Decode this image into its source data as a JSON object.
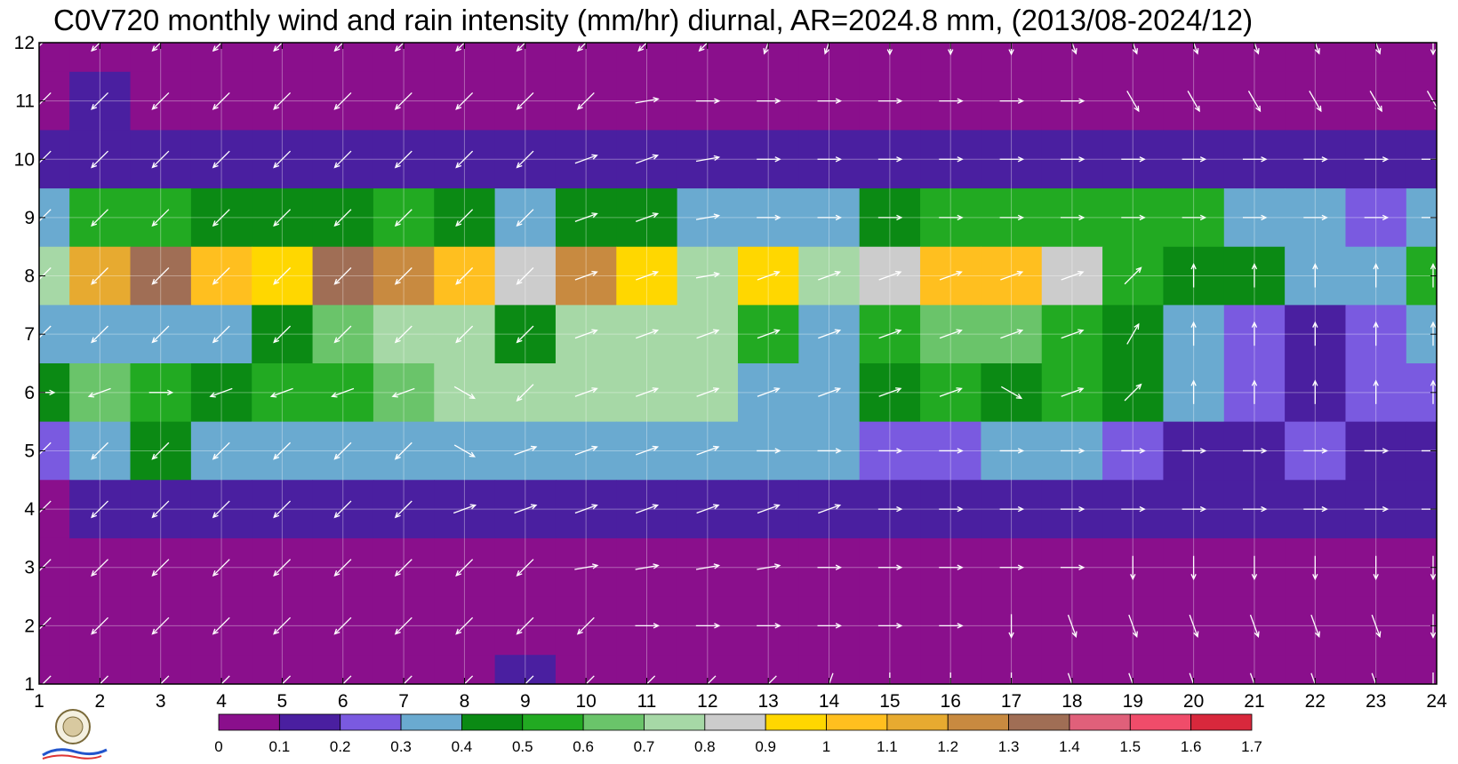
{
  "chart_data": {
    "type": "heatmap",
    "title": "C0V720 monthly wind and rain intensity (mm/hr) diurnal, AR=2024.8 mm, (2013/08-2024/12)",
    "x_ticks": [
      1,
      2,
      3,
      4,
      5,
      6,
      7,
      8,
      9,
      10,
      11,
      12,
      13,
      14,
      15,
      16,
      17,
      18,
      19,
      20,
      21,
      22,
      23,
      24
    ],
    "y_ticks": [
      1,
      2,
      3,
      4,
      5,
      6,
      7,
      8,
      9,
      10,
      11,
      12
    ],
    "xlim": [
      1,
      24
    ],
    "ylim": [
      1,
      12
    ],
    "grid": true,
    "colorbar": {
      "levels": [
        0,
        0.1,
        0.2,
        0.3,
        0.4,
        0.5,
        0.6,
        0.7,
        0.8,
        0.9,
        1,
        1.1,
        1.2,
        1.3,
        1.4,
        1.5,
        1.6,
        1.7
      ],
      "colors": [
        "#8a0f8c",
        "#4a1fa0",
        "#7a5ae0",
        "#6aaad0",
        "#0b8a14",
        "#22aa22",
        "#6ac46a",
        "#a6d8a6",
        "#cccccc",
        "#ffd700",
        "#ffbf1f",
        "#e7aa30",
        "#c88a40",
        "#a06e55",
        "#e0607a",
        "#f04c6a",
        "#d8283c"
      ]
    },
    "intensity_rows": [
      {
        "month": 12,
        "values": [
          0.05,
          0.05,
          0.05,
          0.05,
          0.05,
          0.05,
          0.05,
          0.05,
          0.05,
          0.05,
          0.05,
          0.05,
          0.05,
          0.05,
          0.05,
          0.05,
          0.05,
          0.05,
          0.05,
          0.05,
          0.05,
          0.05,
          0.05,
          0.05
        ]
      },
      {
        "month": 11,
        "values": [
          0.05,
          0.15,
          0.08,
          0.05,
          0.05,
          0.05,
          0.05,
          0.05,
          0.05,
          0.05,
          0.05,
          0.05,
          0.05,
          0.05,
          0.05,
          0.05,
          0.05,
          0.05,
          0.05,
          0.05,
          0.05,
          0.05,
          0.05,
          0.05
        ]
      },
      {
        "month": 10,
        "values": [
          0.18,
          0.15,
          0.15,
          0.15,
          0.15,
          0.15,
          0.15,
          0.15,
          0.12,
          0.12,
          0.12,
          0.15,
          0.15,
          0.15,
          0.15,
          0.15,
          0.15,
          0.15,
          0.12,
          0.15,
          0.15,
          0.15,
          0.15,
          0.15
        ]
      },
      {
        "month": 9,
        "values": [
          0.35,
          0.55,
          0.5,
          0.45,
          0.45,
          0.45,
          0.5,
          0.45,
          0.35,
          0.45,
          0.4,
          0.38,
          0.35,
          0.38,
          0.45,
          0.5,
          0.5,
          0.5,
          0.5,
          0.55,
          0.35,
          0.35,
          0.2,
          0.3
        ]
      },
      {
        "month": 8,
        "values": [
          0.7,
          1.1,
          1.3,
          1.0,
          0.9,
          1.3,
          1.2,
          1.0,
          0.8,
          1.2,
          0.9,
          0.7,
          0.9,
          0.7,
          0.8,
          1.0,
          1.0,
          0.8,
          0.5,
          0.4,
          0.4,
          0.35,
          0.35,
          0.5
        ]
      },
      {
        "month": 7,
        "values": [
          0.35,
          0.3,
          0.3,
          0.35,
          0.45,
          0.6,
          0.7,
          0.7,
          0.4,
          0.7,
          0.75,
          0.7,
          0.5,
          0.35,
          0.5,
          0.6,
          0.65,
          0.55,
          0.45,
          0.35,
          0.25,
          0.15,
          0.25,
          0.3
        ]
      },
      {
        "month": 6,
        "values": [
          0.45,
          0.6,
          0.5,
          0.4,
          0.55,
          0.55,
          0.6,
          0.7,
          0.7,
          0.7,
          0.7,
          0.75,
          0.35,
          0.35,
          0.45,
          0.5,
          0.45,
          0.5,
          0.45,
          0.3,
          0.25,
          0.15,
          0.25,
          0.25
        ]
      },
      {
        "month": 5,
        "values": [
          0.25,
          0.3,
          0.4,
          0.3,
          0.35,
          0.3,
          0.35,
          0.35,
          0.35,
          0.35,
          0.35,
          0.35,
          0.3,
          0.3,
          0.25,
          0.25,
          0.35,
          0.3,
          0.2,
          0.1,
          0.15,
          0.2,
          0.15,
          0.15
        ]
      },
      {
        "month": 4,
        "values": [
          0.05,
          0.15,
          0.15,
          0.1,
          0.15,
          0.15,
          0.1,
          0.15,
          0.15,
          0.15,
          0.15,
          0.15,
          0.15,
          0.15,
          0.15,
          0.15,
          0.15,
          0.15,
          0.1,
          0.15,
          0.15,
          0.12,
          0.12,
          0.15
        ]
      },
      {
        "month": 3,
        "values": [
          0.05,
          0.05,
          0.05,
          0.05,
          0.05,
          0.05,
          0.05,
          0.05,
          0.05,
          0.05,
          0.05,
          0.05,
          0.05,
          0.05,
          0.05,
          0.05,
          0.05,
          0.05,
          0.05,
          0.05,
          0.05,
          0.05,
          0.05,
          0.05
        ]
      },
      {
        "month": 2,
        "values": [
          0.05,
          0.05,
          0.05,
          0.05,
          0.05,
          0.05,
          0.05,
          0.05,
          0.05,
          0.05,
          0.05,
          0.05,
          0.05,
          0.05,
          0.05,
          0.05,
          0.05,
          0.05,
          0.05,
          0.05,
          0.05,
          0.05,
          0.05,
          0.05
        ]
      },
      {
        "month": 1,
        "values": [
          0.05,
          0.05,
          0.05,
          0.05,
          0.05,
          0.05,
          0.05,
          0.05,
          0.12,
          0.05,
          0.05,
          0.05,
          0.05,
          0.05,
          0.05,
          0.05,
          0.05,
          0.05,
          0.05,
          0.05,
          0.05,
          0.05,
          0.05,
          0.05
        ]
      }
    ],
    "wind_rows": [
      {
        "month": 12,
        "angles": [
          225,
          225,
          225,
          225,
          225,
          225,
          225,
          225,
          225,
          225,
          225,
          225,
          250,
          250,
          270,
          270,
          270,
          290,
          290,
          290,
          290,
          290,
          290,
          270
        ]
      },
      {
        "month": 11,
        "angles": [
          225,
          225,
          225,
          225,
          225,
          225,
          225,
          225,
          225,
          225,
          10,
          0,
          0,
          0,
          0,
          0,
          0,
          0,
          300,
          300,
          300,
          300,
          300,
          300
        ]
      },
      {
        "month": 10,
        "angles": [
          225,
          225,
          225,
          225,
          225,
          225,
          225,
          225,
          225,
          20,
          20,
          10,
          0,
          0,
          0,
          0,
          0,
          0,
          0,
          0,
          0,
          0,
          0,
          0
        ]
      },
      {
        "month": 9,
        "angles": [
          225,
          225,
          225,
          225,
          225,
          225,
          225,
          225,
          225,
          20,
          20,
          10,
          0,
          0,
          0,
          0,
          0,
          0,
          0,
          0,
          0,
          0,
          0,
          0
        ]
      },
      {
        "month": 8,
        "angles": [
          225,
          225,
          225,
          225,
          225,
          225,
          225,
          225,
          225,
          20,
          20,
          10,
          20,
          20,
          20,
          20,
          20,
          20,
          45,
          90,
          90,
          90,
          90,
          90
        ]
      },
      {
        "month": 7,
        "angles": [
          225,
          225,
          225,
          225,
          225,
          225,
          225,
          225,
          225,
          20,
          20,
          20,
          20,
          20,
          20,
          20,
          20,
          20,
          60,
          90,
          90,
          90,
          90,
          90
        ]
      },
      {
        "month": 6,
        "angles": [
          0,
          200,
          0,
          200,
          200,
          200,
          200,
          330,
          225,
          20,
          20,
          20,
          20,
          20,
          20,
          20,
          330,
          20,
          45,
          90,
          90,
          90,
          90,
          90
        ]
      },
      {
        "month": 5,
        "angles": [
          225,
          225,
          225,
          225,
          225,
          225,
          225,
          330,
          20,
          20,
          20,
          20,
          0,
          0,
          0,
          0,
          0,
          0,
          0,
          0,
          0,
          0,
          0,
          0
        ]
      },
      {
        "month": 4,
        "angles": [
          225,
          225,
          225,
          225,
          225,
          225,
          225,
          20,
          20,
          20,
          20,
          20,
          20,
          20,
          0,
          0,
          0,
          0,
          0,
          0,
          0,
          0,
          0,
          0
        ]
      },
      {
        "month": 3,
        "angles": [
          225,
          225,
          225,
          225,
          225,
          225,
          225,
          225,
          225,
          10,
          10,
          10,
          10,
          0,
          0,
          0,
          0,
          0,
          270,
          270,
          270,
          270,
          270,
          270
        ]
      },
      {
        "month": 2,
        "angles": [
          225,
          225,
          225,
          225,
          225,
          225,
          225,
          225,
          225,
          225,
          0,
          0,
          0,
          0,
          0,
          0,
          270,
          290,
          290,
          290,
          290,
          290,
          290,
          270
        ]
      },
      {
        "month": 1,
        "angles": [
          225,
          225,
          225,
          225,
          225,
          225,
          225,
          225,
          225,
          225,
          225,
          225,
          225,
          250,
          270,
          270,
          270,
          290,
          290,
          290,
          290,
          290,
          290,
          270
        ]
      }
    ]
  }
}
